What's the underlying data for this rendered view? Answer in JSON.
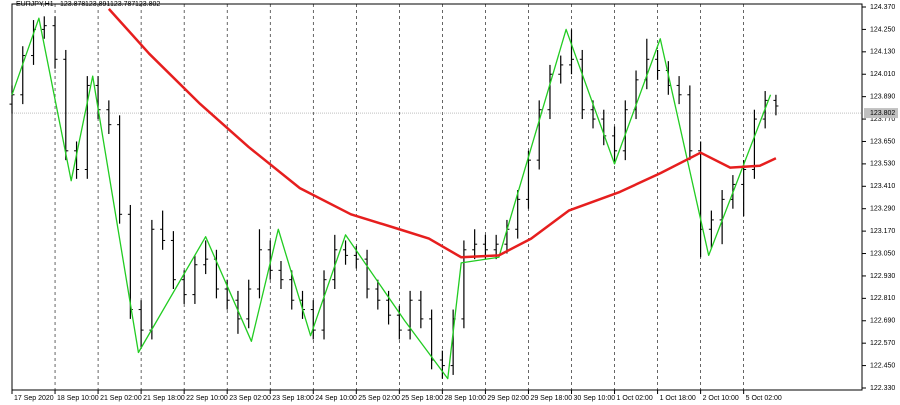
{
  "chart_data": {
    "type": "ohlc",
    "header": "EURJPY,H1",
    "header_ohlc": [
      123.878,
      123.891,
      123.787,
      123.802
    ],
    "price_line": 123.802,
    "xlim": [
      0,
      316
    ],
    "xticks": [
      {
        "value": 0,
        "label": "17 Sep 2020"
      },
      {
        "value": 16,
        "label": "18 Sep 10:00"
      },
      {
        "value": 32,
        "label": "21 Sep 02:00"
      },
      {
        "value": 48,
        "label": "21 Sep 18:00"
      },
      {
        "value": 64,
        "label": "22 Sep 10:00"
      },
      {
        "value": 80,
        "label": "23 Sep 02:00"
      },
      {
        "value": 96,
        "label": "23 Sep 18:00"
      },
      {
        "value": 112,
        "label": "24 Sep 10:00"
      },
      {
        "value": 128,
        "label": "25 Sep 02:00"
      },
      {
        "value": 144,
        "label": "25 Sep 18:00"
      },
      {
        "value": 160,
        "label": "28 Sep 10:00"
      },
      {
        "value": 176,
        "label": "29 Sep 02:00"
      },
      {
        "value": 192,
        "label": "29 Sep 18:00"
      },
      {
        "value": 208,
        "label": "30 Sep 10:00"
      },
      {
        "value": 224,
        "label": "1 Oct 02:00"
      },
      {
        "value": 240,
        "label": "1 Oct 18:00"
      },
      {
        "value": 256,
        "label": "2 Oct 10:00"
      },
      {
        "value": 272,
        "label": "5 Oct 02:00"
      }
    ],
    "ylim": [
      122.33,
      124.37
    ],
    "yticks": [
      {
        "value": 124.37,
        "label": "124.370"
      },
      {
        "value": 124.25,
        "label": "124.250"
      },
      {
        "value": 124.13,
        "label": "124.130"
      },
      {
        "value": 124.01,
        "label": "124.010"
      },
      {
        "value": 123.89,
        "label": "123.890"
      },
      {
        "value": 123.77,
        "label": "123.770"
      },
      {
        "value": 123.65,
        "label": "123.650"
      },
      {
        "value": 123.53,
        "label": "123.530"
      },
      {
        "value": 123.41,
        "label": "123.410"
      },
      {
        "value": 123.29,
        "label": "123.290"
      },
      {
        "value": 123.17,
        "label": "123.170"
      },
      {
        "value": 123.05,
        "label": "123.050"
      },
      {
        "value": 122.93,
        "label": "122.930"
      },
      {
        "value": 122.81,
        "label": "122.810"
      },
      {
        "value": 122.69,
        "label": "122.690"
      },
      {
        "value": 122.57,
        "label": "122.570"
      },
      {
        "value": 122.45,
        "label": "122.450"
      },
      {
        "value": 122.33,
        "label": "122.330"
      }
    ],
    "bars": {
      "color": "#000000",
      "x": [
        0,
        4,
        8,
        12,
        16,
        20,
        24,
        28,
        32,
        36,
        40,
        44,
        48,
        52,
        56,
        60,
        64,
        68,
        72,
        76,
        80,
        84,
        88,
        92,
        96,
        100,
        104,
        108,
        112,
        116,
        120,
        124,
        128,
        132,
        136,
        140,
        144,
        148,
        152,
        156,
        160,
        164,
        168,
        172,
        176,
        180,
        184,
        188,
        192,
        196,
        200,
        204,
        208,
        212,
        216,
        220,
        224,
        228,
        232,
        236,
        240,
        244,
        248,
        252,
        256,
        260,
        264,
        268,
        272,
        276,
        280,
        284
      ],
      "open": [
        123.85,
        123.9,
        124.11,
        124.25,
        124.27,
        124.09,
        123.6,
        123.5,
        123.95,
        123.82,
        123.74,
        123.26,
        122.75,
        122.64,
        123.18,
        123.12,
        122.91,
        122.83,
        122.99,
        123.02,
        122.86,
        122.8,
        122.7,
        122.86,
        123.07,
        122.96,
        122.91,
        122.8,
        122.75,
        122.64,
        122.91,
        123.07,
        123.04,
        123.02,
        122.86,
        122.8,
        122.72,
        122.64,
        122.8,
        122.7,
        122.48,
        122.45,
        122.7,
        123.07,
        123.1,
        123.07,
        123.1,
        123.18,
        123.34,
        123.55,
        123.82,
        124.01,
        124.06,
        124.09,
        123.82,
        123.77,
        123.68,
        123.6,
        123.82,
        123.98,
        124.09,
        124.03,
        123.95,
        123.9,
        123.6,
        123.18,
        123.23,
        123.34,
        123.42,
        123.5,
        123.77,
        123.87
      ],
      "high": [
        123.95,
        124.16,
        124.3,
        124.32,
        124.32,
        124.14,
        123.65,
        124.0,
        124.0,
        123.87,
        123.79,
        123.31,
        122.8,
        123.23,
        123.28,
        123.17,
        122.96,
        123.04,
        123.12,
        123.07,
        122.91,
        122.85,
        122.91,
        123.18,
        123.12,
        123.01,
        122.96,
        122.85,
        122.8,
        122.96,
        123.15,
        123.12,
        123.09,
        123.07,
        122.91,
        122.85,
        122.77,
        122.85,
        122.85,
        122.75,
        122.53,
        122.75,
        123.12,
        123.18,
        123.15,
        123.15,
        123.23,
        123.39,
        123.6,
        123.87,
        124.06,
        124.11,
        124.25,
        124.14,
        123.87,
        123.82,
        123.73,
        123.87,
        124.03,
        124.2,
        124.14,
        124.08,
        124.0,
        123.95,
        123.65,
        123.28,
        123.39,
        123.47,
        123.55,
        123.82,
        123.92,
        123.9
      ],
      "low": [
        123.8,
        123.85,
        124.06,
        124.2,
        124.04,
        123.55,
        123.45,
        123.45,
        123.77,
        123.69,
        123.21,
        122.7,
        122.54,
        122.59,
        123.07,
        122.86,
        122.78,
        122.78,
        122.94,
        122.81,
        122.75,
        122.62,
        122.65,
        122.81,
        122.91,
        122.86,
        122.75,
        122.7,
        122.59,
        122.59,
        122.86,
        122.99,
        122.97,
        122.81,
        122.75,
        122.67,
        122.59,
        122.59,
        122.65,
        122.43,
        122.38,
        122.4,
        122.65,
        123.02,
        123.02,
        123.02,
        123.05,
        123.13,
        123.29,
        123.5,
        123.77,
        123.96,
        124.01,
        123.77,
        123.72,
        123.63,
        123.53,
        123.55,
        123.77,
        123.93,
        123.98,
        123.9,
        123.85,
        123.55,
        123.03,
        123.08,
        123.1,
        123.29,
        123.25,
        123.45,
        123.72,
        123.79
      ],
      "close": [
        123.9,
        124.11,
        124.25,
        124.27,
        124.09,
        123.6,
        123.5,
        123.95,
        123.82,
        123.74,
        123.26,
        122.75,
        122.64,
        123.18,
        123.12,
        122.91,
        122.83,
        122.99,
        123.02,
        122.86,
        122.8,
        122.7,
        122.86,
        123.07,
        122.96,
        122.91,
        122.8,
        122.75,
        122.64,
        122.91,
        123.07,
        123.04,
        123.02,
        122.86,
        122.8,
        122.72,
        122.64,
        122.8,
        122.7,
        122.48,
        122.45,
        122.7,
        123.07,
        123.1,
        123.07,
        123.1,
        123.18,
        123.34,
        123.55,
        123.82,
        124.01,
        124.06,
        124.09,
        123.82,
        123.77,
        123.68,
        123.6,
        123.82,
        123.98,
        124.09,
        124.03,
        123.95,
        123.9,
        123.6,
        123.18,
        123.23,
        123.34,
        123.42,
        123.5,
        123.77,
        123.87,
        123.84
      ]
    },
    "lines": [
      {
        "color": "#22cc22",
        "width": 1.3,
        "x": [
          0,
          10,
          22,
          30,
          47,
          72,
          89,
          99,
          111,
          124,
          146,
          162,
          167,
          181,
          206,
          224,
          241,
          259,
          282
        ],
        "values": [
          123.9,
          124.31,
          123.44,
          124.0,
          122.52,
          123.14,
          122.58,
          123.18,
          122.61,
          123.15,
          122.69,
          122.38,
          123.0,
          123.03,
          124.25,
          123.53,
          124.2,
          123.04,
          123.9
        ]
      },
      {
        "color": "#e61e1e",
        "width": 2.5,
        "x": [
          36,
          51,
          70,
          88,
          107,
          126,
          144,
          155,
          167,
          181,
          193,
          207,
          226,
          241,
          256,
          267,
          278,
          284
        ],
        "values": [
          124.36,
          124.12,
          123.85,
          123.62,
          123.4,
          123.26,
          123.18,
          123.13,
          123.03,
          123.04,
          123.13,
          123.28,
          123.38,
          123.48,
          123.59,
          123.51,
          123.52,
          123.56
        ]
      }
    ]
  }
}
